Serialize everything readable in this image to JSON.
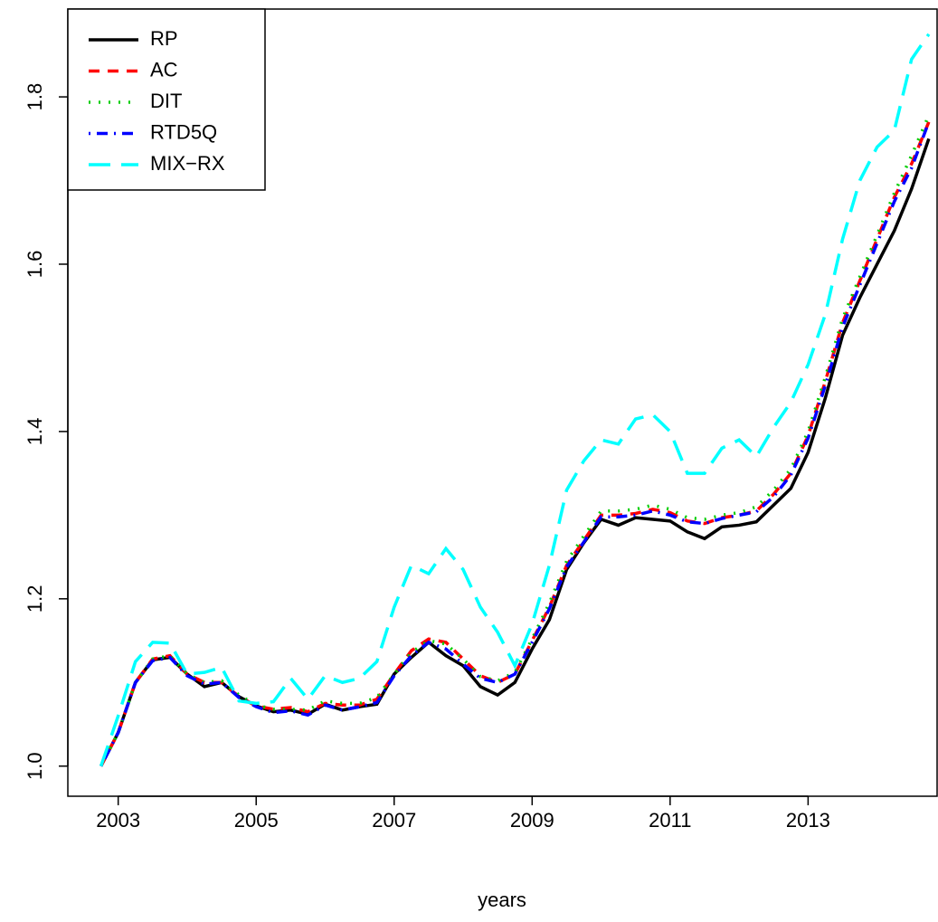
{
  "chart_data": {
    "type": "line",
    "x_label": "years",
    "x": [
      2002.75,
      2003,
      2003.25,
      2003.5,
      2003.75,
      2004,
      2004.25,
      2004.5,
      2004.75,
      2005,
      2005.25,
      2005.5,
      2005.75,
      2006,
      2006.25,
      2006.5,
      2006.75,
      2007,
      2007.25,
      2007.5,
      2007.75,
      2008,
      2008.25,
      2008.5,
      2008.75,
      2009,
      2009.25,
      2009.5,
      2009.75,
      2010,
      2010.25,
      2010.5,
      2010.75,
      2011,
      2011.25,
      2011.5,
      2011.75,
      2012,
      2012.25,
      2012.5,
      2012.75,
      2013,
      2013.25,
      2013.5,
      2013.75,
      2014,
      2014.25,
      2014.5,
      2014.75
    ],
    "series": [
      {
        "name": "RP",
        "color": "#000000",
        "linestyle": "solid",
        "values": [
          1.0,
          1.04,
          1.1,
          1.127,
          1.13,
          1.11,
          1.095,
          1.1,
          1.083,
          1.072,
          1.065,
          1.067,
          1.062,
          1.074,
          1.067,
          1.071,
          1.074,
          1.11,
          1.13,
          1.148,
          1.132,
          1.12,
          1.095,
          1.085,
          1.1,
          1.14,
          1.175,
          1.235,
          1.267,
          1.295,
          1.288,
          1.297,
          1.295,
          1.293,
          1.28,
          1.272,
          1.286,
          1.288,
          1.292,
          1.312,
          1.332,
          1.375,
          1.44,
          1.515,
          1.56,
          1.6,
          1.64,
          1.69,
          1.75
        ]
      },
      {
        "name": "AC",
        "color": "#ff0000",
        "linestyle": "dashed",
        "values": [
          1.0,
          1.04,
          1.1,
          1.128,
          1.132,
          1.11,
          1.1,
          1.1,
          1.083,
          1.072,
          1.068,
          1.07,
          1.065,
          1.075,
          1.073,
          1.073,
          1.08,
          1.11,
          1.138,
          1.152,
          1.148,
          1.128,
          1.108,
          1.1,
          1.11,
          1.15,
          1.19,
          1.24,
          1.27,
          1.3,
          1.3,
          1.302,
          1.307,
          1.303,
          1.293,
          1.29,
          1.297,
          1.3,
          1.305,
          1.325,
          1.35,
          1.395,
          1.46,
          1.53,
          1.58,
          1.63,
          1.68,
          1.72,
          1.77
        ]
      },
      {
        "name": "DIT",
        "color": "#00cd00",
        "linestyle": "dotted",
        "values": [
          1.0,
          1.04,
          1.1,
          1.128,
          1.132,
          1.11,
          1.1,
          1.102,
          1.085,
          1.073,
          1.068,
          1.068,
          1.067,
          1.078,
          1.075,
          1.075,
          1.082,
          1.11,
          1.136,
          1.15,
          1.146,
          1.128,
          1.107,
          1.102,
          1.112,
          1.152,
          1.195,
          1.245,
          1.275,
          1.305,
          1.305,
          1.307,
          1.312,
          1.307,
          1.297,
          1.295,
          1.3,
          1.303,
          1.31,
          1.33,
          1.355,
          1.4,
          1.465,
          1.535,
          1.585,
          1.635,
          1.685,
          1.73,
          1.778
        ]
      },
      {
        "name": "RTD5Q",
        "color": "#0000ff",
        "linestyle": "dotdash",
        "values": [
          1.0,
          1.04,
          1.1,
          1.126,
          1.13,
          1.108,
          1.098,
          1.1,
          1.082,
          1.071,
          1.064,
          1.066,
          1.061,
          1.073,
          1.067,
          1.071,
          1.076,
          1.108,
          1.132,
          1.148,
          1.14,
          1.122,
          1.105,
          1.1,
          1.11,
          1.148,
          1.188,
          1.238,
          1.268,
          1.298,
          1.298,
          1.3,
          1.305,
          1.3,
          1.292,
          1.29,
          1.296,
          1.3,
          1.304,
          1.322,
          1.348,
          1.392,
          1.455,
          1.525,
          1.575,
          1.625,
          1.675,
          1.715,
          1.77
        ]
      },
      {
        "name": "MIX−RX",
        "color": "#00ffff",
        "linestyle": "longdash",
        "values": [
          1.0,
          1.06,
          1.125,
          1.148,
          1.147,
          1.11,
          1.112,
          1.118,
          1.078,
          1.075,
          1.077,
          1.105,
          1.08,
          1.108,
          1.1,
          1.105,
          1.125,
          1.19,
          1.24,
          1.23,
          1.26,
          1.235,
          1.19,
          1.16,
          1.12,
          1.17,
          1.24,
          1.33,
          1.365,
          1.39,
          1.385,
          1.415,
          1.42,
          1.4,
          1.35,
          1.35,
          1.38,
          1.39,
          1.37,
          1.405,
          1.435,
          1.48,
          1.54,
          1.63,
          1.7,
          1.74,
          1.76,
          1.845,
          1.875
        ]
      }
    ],
    "xlim": [
      2002.27,
      2014.87
    ],
    "ylim": [
      0.964,
      1.905
    ],
    "xticks": [
      2003,
      2005,
      2007,
      2009,
      2011,
      2013
    ],
    "yticks": [
      {
        "value": 1,
        "label": "1.0"
      },
      1.2,
      1.4,
      1.6,
      1.8
    ],
    "legend": "top-left",
    "grid": false
  }
}
